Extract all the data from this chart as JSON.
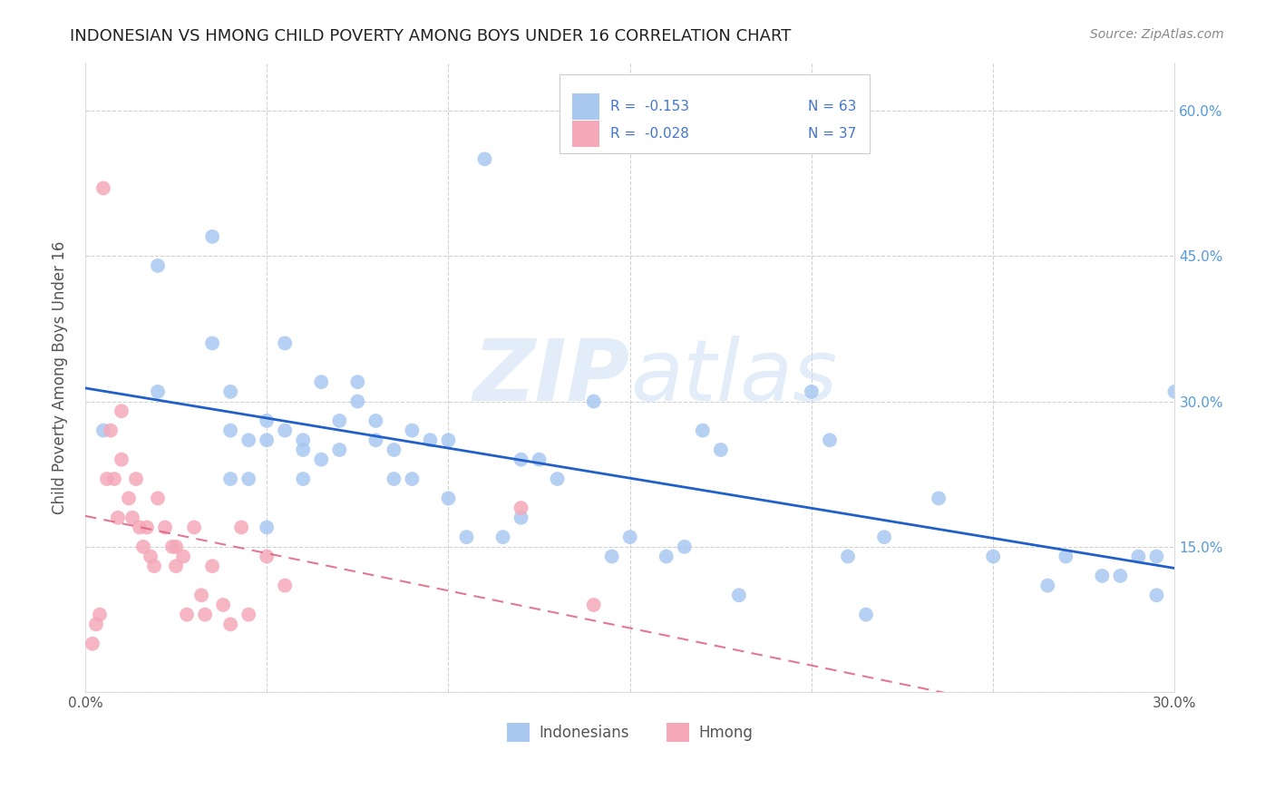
{
  "title": "INDONESIAN VS HMONG CHILD POVERTY AMONG BOYS UNDER 16 CORRELATION CHART",
  "source": "Source: ZipAtlas.com",
  "ylabel": "Child Poverty Among Boys Under 16",
  "xlim": [
    0.0,
    0.3
  ],
  "ylim": [
    0.0,
    0.65
  ],
  "xticks": [
    0.0,
    0.05,
    0.1,
    0.15,
    0.2,
    0.25,
    0.3
  ],
  "yticks": [
    0.0,
    0.15,
    0.3,
    0.45,
    0.6
  ],
  "legend_r_blue": "-0.153",
  "legend_n_blue": "63",
  "legend_r_pink": "-0.028",
  "legend_n_pink": "37",
  "blue_color": "#a8c8f0",
  "pink_color": "#f4a8b8",
  "line_blue": "#2060c8",
  "line_pink": "#e06080",
  "indonesian_x": [
    0.005,
    0.02,
    0.02,
    0.035,
    0.035,
    0.04,
    0.04,
    0.04,
    0.045,
    0.045,
    0.05,
    0.05,
    0.05,
    0.055,
    0.055,
    0.06,
    0.06,
    0.06,
    0.065,
    0.065,
    0.07,
    0.07,
    0.075,
    0.075,
    0.08,
    0.08,
    0.085,
    0.085,
    0.09,
    0.09,
    0.095,
    0.1,
    0.1,
    0.105,
    0.11,
    0.115,
    0.12,
    0.12,
    0.125,
    0.13,
    0.14,
    0.145,
    0.15,
    0.16,
    0.165,
    0.17,
    0.175,
    0.18,
    0.2,
    0.205,
    0.21,
    0.215,
    0.22,
    0.235,
    0.25,
    0.265,
    0.27,
    0.28,
    0.285,
    0.29,
    0.295,
    0.295,
    0.3
  ],
  "indonesian_y": [
    0.27,
    0.44,
    0.31,
    0.47,
    0.36,
    0.31,
    0.27,
    0.22,
    0.26,
    0.22,
    0.28,
    0.26,
    0.17,
    0.36,
    0.27,
    0.26,
    0.25,
    0.22,
    0.32,
    0.24,
    0.28,
    0.25,
    0.32,
    0.3,
    0.28,
    0.26,
    0.25,
    0.22,
    0.27,
    0.22,
    0.26,
    0.26,
    0.2,
    0.16,
    0.55,
    0.16,
    0.24,
    0.18,
    0.24,
    0.22,
    0.3,
    0.14,
    0.16,
    0.14,
    0.15,
    0.27,
    0.25,
    0.1,
    0.31,
    0.26,
    0.14,
    0.08,
    0.16,
    0.2,
    0.14,
    0.11,
    0.14,
    0.12,
    0.12,
    0.14,
    0.14,
    0.1,
    0.31
  ],
  "hmong_x": [
    0.002,
    0.003,
    0.004,
    0.005,
    0.006,
    0.007,
    0.008,
    0.009,
    0.01,
    0.01,
    0.012,
    0.013,
    0.014,
    0.015,
    0.016,
    0.017,
    0.018,
    0.019,
    0.02,
    0.022,
    0.024,
    0.025,
    0.025,
    0.027,
    0.028,
    0.03,
    0.032,
    0.033,
    0.035,
    0.038,
    0.04,
    0.043,
    0.045,
    0.05,
    0.055,
    0.12,
    0.14
  ],
  "hmong_y": [
    0.05,
    0.07,
    0.08,
    0.52,
    0.22,
    0.27,
    0.22,
    0.18,
    0.29,
    0.24,
    0.2,
    0.18,
    0.22,
    0.17,
    0.15,
    0.17,
    0.14,
    0.13,
    0.2,
    0.17,
    0.15,
    0.15,
    0.13,
    0.14,
    0.08,
    0.17,
    0.1,
    0.08,
    0.13,
    0.09,
    0.07,
    0.17,
    0.08,
    0.14,
    0.11,
    0.19,
    0.09
  ]
}
